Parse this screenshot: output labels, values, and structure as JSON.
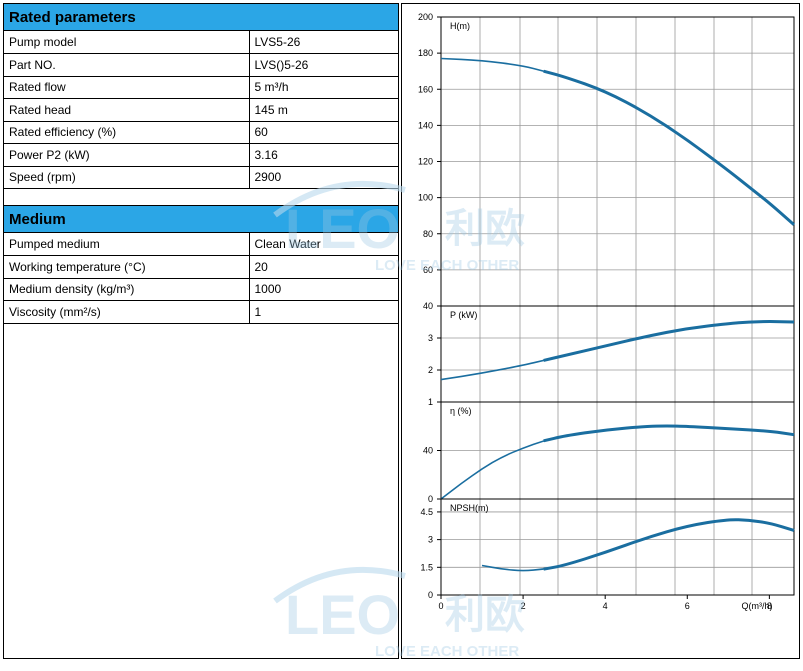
{
  "rated": {
    "title": "Rated parameters",
    "rows": [
      {
        "label": "Pump model",
        "value": "LVS5-26"
      },
      {
        "label": "Part NO.",
        "value": "LVS()5-26"
      },
      {
        "label": "Rated flow",
        "value": "5 m³/h"
      },
      {
        "label": "Rated head",
        "value": "145 m"
      },
      {
        "label": "Rated efficiency (%)",
        "value": "60"
      },
      {
        "label": "Power P2 (kW)",
        "value": "3.16"
      },
      {
        "label": "Speed (rpm)",
        "value": "2900"
      }
    ]
  },
  "medium": {
    "title": "Medium",
    "rows": [
      {
        "label": "Pumped medium",
        "value": "Clean Water"
      },
      {
        "label": "Working temperature (°C)",
        "value": "20"
      },
      {
        "label": "Medium density (kg/m³)",
        "value": "1000"
      },
      {
        "label": "Viscosity (mm²/s)",
        "value": "1"
      }
    ]
  },
  "watermark": {
    "brand": "LEO",
    "chinese": "利欧",
    "slogan": "LOVE EACH OTHER"
  },
  "chart_data": [
    {
      "type": "line",
      "ylabel": "H(m)",
      "ylim": [
        40,
        200
      ],
      "yticks": [
        "40",
        "60",
        "80",
        "100",
        "120",
        "140",
        "160",
        "180",
        "200"
      ],
      "yticks_values": [
        40,
        60,
        80,
        100,
        120,
        140,
        160,
        180,
        200
      ],
      "xlim": [
        0,
        8.6
      ],
      "grid": true,
      "series": [
        {
          "x": [
            0,
            1,
            2,
            2.5,
            3,
            4,
            5,
            6,
            7,
            7.5,
            8,
            8.6
          ],
          "values": [
            177,
            176,
            173,
            170,
            167,
            159,
            147,
            132,
            115,
            106,
            97,
            85
          ]
        }
      ],
      "emphasis_range": [
        2.5,
        8.6
      ],
      "color": "#1a6ea0"
    },
    {
      "type": "line",
      "ylabel": "P (kW)",
      "ylim": [
        1,
        4
      ],
      "yticks": [
        "1",
        "2",
        "3"
      ],
      "yticks_values": [
        1,
        2,
        3
      ],
      "xlim": [
        0,
        8.6
      ],
      "grid": true,
      "series": [
        {
          "x": [
            0,
            1,
            2,
            2.5,
            3,
            4,
            5,
            6,
            7,
            7.5,
            8,
            8.6
          ],
          "values": [
            1.7,
            1.9,
            2.15,
            2.3,
            2.45,
            2.75,
            3.05,
            3.3,
            3.45,
            3.5,
            3.52,
            3.5
          ]
        }
      ],
      "emphasis_range": [
        2.5,
        8.6
      ],
      "color": "#1a6ea0"
    },
    {
      "type": "line",
      "ylabel": "η (%)",
      "ylim": [
        0,
        80
      ],
      "yticks": [
        "0",
        "40"
      ],
      "yticks_values": [
        0,
        40
      ],
      "xlim": [
        0,
        8.6
      ],
      "grid": true,
      "series": [
        {
          "x": [
            0,
            0.5,
            1,
            1.5,
            2,
            2.5,
            3,
            4,
            5,
            5.5,
            6,
            7,
            8,
            8.6
          ],
          "values": [
            0,
            13,
            25,
            35,
            42,
            48,
            52,
            57,
            60,
            60.3,
            60,
            58,
            56,
            53
          ]
        }
      ],
      "emphasis_range": [
        2.5,
        8.6
      ],
      "color": "#1a6ea0"
    },
    {
      "type": "line",
      "ylabel": "NPSH(m)",
      "xlabel": "Q(m³/h)",
      "ylim": [
        0,
        5.2
      ],
      "yticks": [
        "0",
        "1.5",
        "3",
        "4.5"
      ],
      "yticks_values": [
        0,
        1.5,
        3,
        4.5
      ],
      "xticks": [
        "0",
        "2",
        "4",
        "6",
        "8"
      ],
      "xticks_values": [
        0,
        2,
        4,
        6,
        8
      ],
      "xlim": [
        0,
        8.6
      ],
      "grid": true,
      "series": [
        {
          "x": [
            1,
            1.5,
            2,
            2.5,
            3,
            4,
            5,
            6,
            7,
            7.5,
            8,
            8.6
          ],
          "values": [
            1.6,
            1.4,
            1.3,
            1.4,
            1.6,
            2.3,
            3.1,
            3.75,
            4.1,
            4.05,
            3.9,
            3.5
          ]
        }
      ],
      "emphasis_range": [
        2.5,
        8.6
      ],
      "color": "#1a6ea0"
    }
  ]
}
